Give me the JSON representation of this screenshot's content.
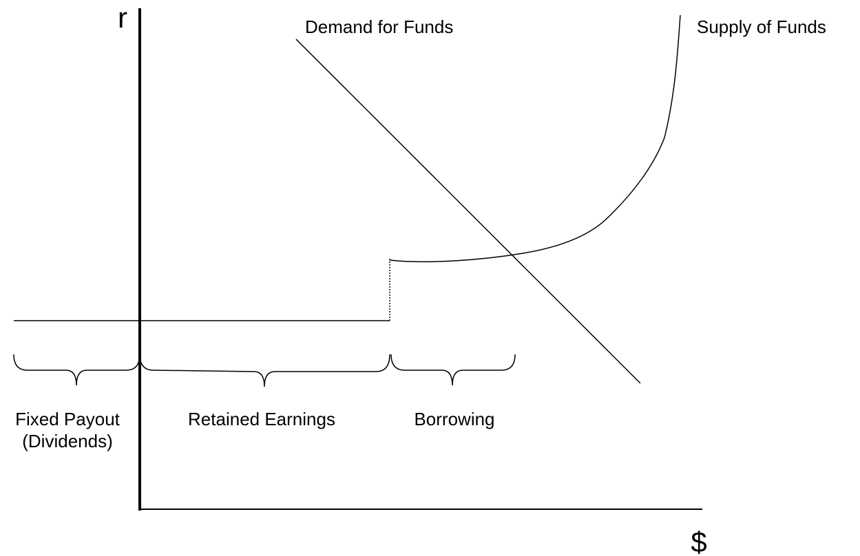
{
  "axes": {
    "y_label": "r",
    "x_label": "$"
  },
  "curves": {
    "demand": "Demand for Funds",
    "supply": "Supply of Funds"
  },
  "segments": [
    {
      "lines": [
        "Fixed Payout",
        "(Dividends)"
      ]
    },
    {
      "lines": [
        "Retained Earnings"
      ]
    },
    {
      "lines": [
        "Borrowing"
      ]
    }
  ]
}
